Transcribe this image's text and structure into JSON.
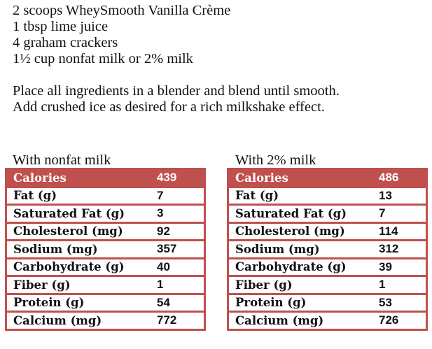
{
  "ingredients": [
    "2 scoops WheySmooth Vanilla Crème",
    "1 tbsp lime juice",
    "4 graham crackers",
    "1½ cup nonfat milk or 2% milk"
  ],
  "instructions": [
    "Place all ingredients in a blender and blend until smooth.",
    "Add crushed ice as desired for a rich milkshake effect."
  ],
  "tables": [
    {
      "caption": "With nonfat milk",
      "rows": [
        [
          "Calories",
          "439"
        ],
        [
          "Fat (g)",
          "7"
        ],
        [
          "Saturated Fat (g)",
          "3"
        ],
        [
          "Cholesterol (mg)",
          "92"
        ],
        [
          "Sodium (mg)",
          "357"
        ],
        [
          "Carbohydrate (g)",
          "40"
        ],
        [
          "Fiber (g)",
          "1"
        ],
        [
          "Protein (g)",
          "54"
        ],
        [
          "Calcium (mg)",
          "772"
        ]
      ]
    },
    {
      "caption": "With 2% milk",
      "rows": [
        [
          "Calories",
          "486"
        ],
        [
          "Fat (g)",
          "13"
        ],
        [
          "Saturated Fat (g)",
          "7"
        ],
        [
          "Cholesterol (mg)",
          "114"
        ],
        [
          "Sodium (mg)",
          "312"
        ],
        [
          "Carbohydrate (g)",
          "39"
        ],
        [
          "Fiber (g)",
          "1"
        ],
        [
          "Protein (g)",
          "53"
        ],
        [
          "Calcium (mg)",
          "726"
        ]
      ]
    }
  ],
  "colors": {
    "accent": "#c0504d"
  }
}
